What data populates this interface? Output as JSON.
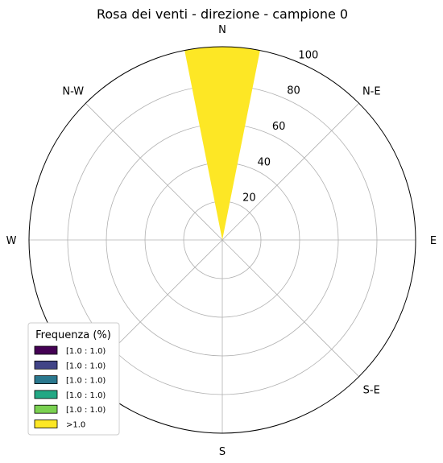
{
  "chart_data": {
    "type": "windrose",
    "title": "Rosa dei venti - direzione - campione 0",
    "directions": [
      "E",
      "N-E",
      "N",
      "N-W",
      "W",
      "S-W",
      "S",
      "S-E"
    ],
    "radial_ticks": [
      20,
      40,
      60,
      80,
      100
    ],
    "rmax": 100,
    "bars": [
      {
        "direction": "N",
        "bin": ">1.0",
        "value": 100
      }
    ],
    "legend": {
      "title": "Frequenza (%)",
      "placement": "lower-left",
      "entries": [
        {
          "label": "[1.0 : 1.0)",
          "color": "#440154"
        },
        {
          "label": "[1.0 : 1.0)",
          "color": "#414487"
        },
        {
          "label": "[1.0 : 1.0)",
          "color": "#2a788e"
        },
        {
          "label": "[1.0 : 1.0)",
          "color": "#22a884"
        },
        {
          "label": "[1.0 : 1.0)",
          "color": "#7ad151"
        },
        {
          "label": ">1.0",
          "color": "#fde725"
        }
      ]
    },
    "grid": true
  }
}
